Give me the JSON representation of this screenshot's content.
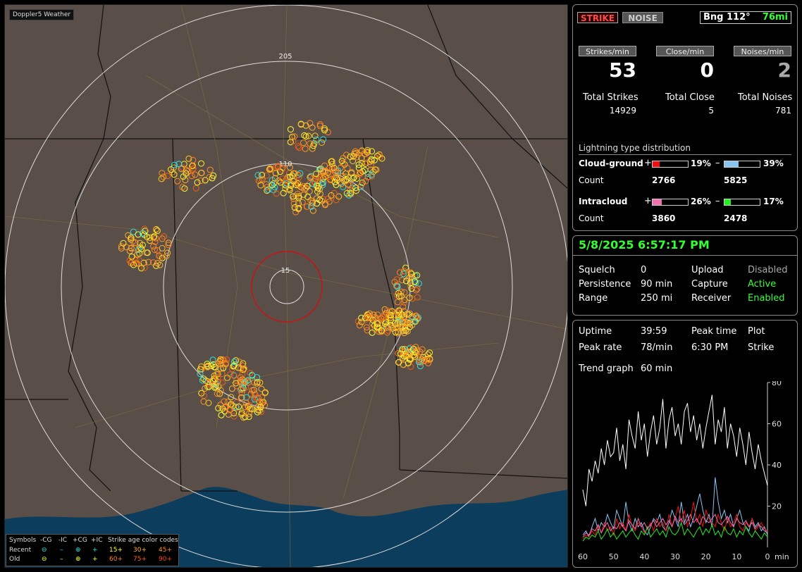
{
  "app_title": "Doppler5 Weather",
  "map": {
    "ring_labels": [
      "205",
      "110",
      "15"
    ]
  },
  "legend": {
    "symbols_label": "Symbols",
    "headers": [
      "-CG",
      "-IC",
      "+CG",
      "+IC"
    ],
    "age_label": "Strike age color codes",
    "recent_label": "Recent",
    "old_label": "Old",
    "recent_ages": [
      "15+",
      "30+",
      "45+"
    ],
    "old_ages": [
      "60+",
      "75+",
      "90+"
    ]
  },
  "top": {
    "strike_button": "STRIKE",
    "noise_button": "NOISE",
    "bearing": "Bng 112°",
    "distance": "76mi"
  },
  "rates": {
    "strikes_label": "Strikes/min",
    "close_label": "Close/min",
    "noises_label": "Noises/min",
    "strikes_value": "53",
    "close_value": "0",
    "noises_value": "2"
  },
  "totals": {
    "strikes_label": "Total Strikes",
    "close_label": "Total Close",
    "noises_label": "Total Noises",
    "strikes_value": "14929",
    "close_value": "5",
    "noises_value": "781"
  },
  "distribution": {
    "title": "Lightning type distribution",
    "cg_label": "Cloud-ground",
    "ic_label": "Intracloud",
    "count_label": "Count",
    "plus_sign": "+",
    "minus_sign": "–",
    "cg_pos_pct": "19%",
    "cg_neg_pct": "39%",
    "ic_pos_pct": "26%",
    "ic_neg_pct": "17%",
    "cg_pos_fraction": 0.19,
    "cg_neg_fraction": 0.39,
    "ic_pos_fraction": 0.26,
    "ic_neg_fraction": 0.17,
    "cg_pos_count": "2766",
    "cg_neg_count": "5825",
    "ic_pos_count": "3860",
    "ic_neg_count": "2478",
    "colors": {
      "cg_pos": "#ee1111",
      "cg_neg": "#88c4f0",
      "ic_pos": "#f070b0",
      "ic_neg": "#22ee22"
    }
  },
  "status": {
    "datetime": "5/8/2025 6:57:17 PM",
    "squelch_label": "Squelch",
    "squelch_value": "0",
    "persistence_label": "Persistence",
    "persistence_value": "90 min",
    "range_label": "Range",
    "range_value": "250 mi",
    "upload_label": "Upload",
    "upload_value": "Disabled",
    "capture_label": "Capture",
    "capture_value": "Active",
    "receiver_label": "Receiver",
    "receiver_value": "Enabled"
  },
  "stats": {
    "uptime_label": "Uptime",
    "uptime_value": "39:59",
    "peak_time_label": "Peak time",
    "plot_label": "Plot",
    "peak_rate_label": "Peak rate",
    "peak_rate_value": "78/min",
    "peak_time_value": "6:30 PM",
    "plot_value": "Strike",
    "trend_label": "Trend graph",
    "trend_value": "60 min"
  },
  "chart_data": {
    "type": "line",
    "xlabel": "min",
    "x_ticks": [
      "60",
      "50",
      "40",
      "30",
      "20",
      "10",
      "0"
    ],
    "y_ticks": [
      "80",
      "60",
      "40",
      "20"
    ],
    "ylim": [
      0,
      80
    ],
    "xlim": [
      60,
      0
    ],
    "x": [
      60,
      59,
      58,
      57,
      56,
      55,
      54,
      53,
      52,
      51,
      50,
      49,
      48,
      47,
      46,
      45,
      44,
      43,
      42,
      41,
      40,
      39,
      38,
      37,
      36,
      35,
      34,
      33,
      32,
      31,
      30,
      29,
      28,
      27,
      26,
      25,
      24,
      23,
      22,
      21,
      20,
      19,
      18,
      17,
      16,
      15,
      14,
      13,
      12,
      11,
      10,
      9,
      8,
      7,
      6,
      5,
      4,
      3,
      2,
      1,
      0
    ],
    "series": [
      {
        "color": "#ffffff",
        "values": [
          28,
          20,
          38,
          32,
          42,
          36,
          48,
          40,
          52,
          44,
          46,
          58,
          42,
          50,
          38,
          62,
          54,
          48,
          66,
          52,
          60,
          44,
          56,
          64,
          50,
          58,
          72,
          48,
          62,
          68,
          54,
          60,
          50,
          66,
          70,
          56,
          64,
          52,
          60,
          48,
          58,
          66,
          74,
          50,
          62,
          56,
          68,
          48,
          60,
          54,
          44,
          58,
          50,
          40,
          56,
          46,
          38,
          50,
          42,
          36,
          30
        ]
      },
      {
        "color": "#88c4f0",
        "values": [
          6,
          8,
          5,
          10,
          14,
          8,
          12,
          10,
          16,
          12,
          9,
          18,
          14,
          10,
          22,
          12,
          8,
          14,
          10,
          12,
          8,
          6,
          10,
          14,
          12,
          16,
          10,
          8,
          12,
          18,
          14,
          10,
          22,
          12,
          16,
          10,
          14,
          20,
          26,
          18,
          12,
          16,
          10,
          34,
          22,
          14,
          18,
          12,
          16,
          10,
          14,
          18,
          12,
          10,
          8,
          14,
          10,
          12,
          8,
          10,
          6
        ]
      },
      {
        "color": "#ee1111",
        "values": [
          4,
          6,
          5,
          8,
          6,
          10,
          7,
          12,
          8,
          10,
          6,
          14,
          9,
          12,
          8,
          16,
          10,
          8,
          12,
          10,
          7,
          9,
          12,
          8,
          14,
          10,
          12,
          8,
          16,
          10,
          14,
          20,
          12,
          18,
          10,
          14,
          22,
          12,
          16,
          10,
          18,
          14,
          12,
          10,
          16,
          12,
          8,
          14,
          10,
          12,
          16,
          10,
          8,
          12,
          10,
          14,
          8,
          10,
          12,
          9,
          8
        ]
      },
      {
        "color": "#22ee22",
        "values": [
          3,
          5,
          4,
          6,
          5,
          8,
          4,
          6,
          9,
          5,
          7,
          4,
          6,
          8,
          5,
          7,
          9,
          6,
          4,
          8,
          6,
          10,
          5,
          7,
          9,
          6,
          8,
          5,
          10,
          7,
          6,
          8,
          12,
          6,
          9,
          7,
          5,
          8,
          10,
          6,
          9,
          7,
          11,
          6,
          8,
          5,
          10,
          7,
          6,
          9,
          5,
          8,
          6,
          10,
          7,
          5,
          8,
          6,
          4,
          7,
          5
        ]
      },
      {
        "color": "#f070b0",
        "values": [
          5,
          7,
          6,
          9,
          8,
          11,
          7,
          10,
          12,
          8,
          10,
          9,
          12,
          10,
          8,
          13,
          11,
          9,
          14,
          10,
          12,
          9,
          11,
          13,
          10,
          12,
          14,
          11,
          13,
          10,
          15,
          12,
          14,
          11,
          13,
          16,
          12,
          14,
          11,
          15,
          13,
          12,
          14,
          16,
          12,
          11,
          13,
          15,
          12,
          10,
          14,
          12,
          11,
          13,
          10,
          12,
          9,
          11,
          10,
          8,
          7
        ]
      }
    ]
  }
}
